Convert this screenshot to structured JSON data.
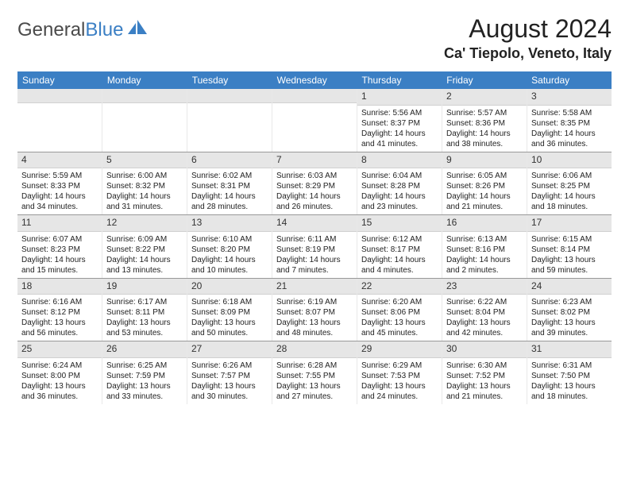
{
  "logo": {
    "text1": "General",
    "text2": "Blue"
  },
  "title": "August 2024",
  "location": "Ca' Tiepolo, Veneto, Italy",
  "colors": {
    "header_bg": "#3b7fc4",
    "daynum_bg": "#e6e6e6",
    "border": "#999999",
    "cell_border": "#e8e8e8"
  },
  "weekdays": [
    "Sunday",
    "Monday",
    "Tuesday",
    "Wednesday",
    "Thursday",
    "Friday",
    "Saturday"
  ],
  "weeks": [
    [
      null,
      null,
      null,
      null,
      {
        "n": "1",
        "sr": "Sunrise: 5:56 AM",
        "ss": "Sunset: 8:37 PM",
        "dl1": "Daylight: 14 hours",
        "dl2": "and 41 minutes."
      },
      {
        "n": "2",
        "sr": "Sunrise: 5:57 AM",
        "ss": "Sunset: 8:36 PM",
        "dl1": "Daylight: 14 hours",
        "dl2": "and 38 minutes."
      },
      {
        "n": "3",
        "sr": "Sunrise: 5:58 AM",
        "ss": "Sunset: 8:35 PM",
        "dl1": "Daylight: 14 hours",
        "dl2": "and 36 minutes."
      }
    ],
    [
      {
        "n": "4",
        "sr": "Sunrise: 5:59 AM",
        "ss": "Sunset: 8:33 PM",
        "dl1": "Daylight: 14 hours",
        "dl2": "and 34 minutes."
      },
      {
        "n": "5",
        "sr": "Sunrise: 6:00 AM",
        "ss": "Sunset: 8:32 PM",
        "dl1": "Daylight: 14 hours",
        "dl2": "and 31 minutes."
      },
      {
        "n": "6",
        "sr": "Sunrise: 6:02 AM",
        "ss": "Sunset: 8:31 PM",
        "dl1": "Daylight: 14 hours",
        "dl2": "and 28 minutes."
      },
      {
        "n": "7",
        "sr": "Sunrise: 6:03 AM",
        "ss": "Sunset: 8:29 PM",
        "dl1": "Daylight: 14 hours",
        "dl2": "and 26 minutes."
      },
      {
        "n": "8",
        "sr": "Sunrise: 6:04 AM",
        "ss": "Sunset: 8:28 PM",
        "dl1": "Daylight: 14 hours",
        "dl2": "and 23 minutes."
      },
      {
        "n": "9",
        "sr": "Sunrise: 6:05 AM",
        "ss": "Sunset: 8:26 PM",
        "dl1": "Daylight: 14 hours",
        "dl2": "and 21 minutes."
      },
      {
        "n": "10",
        "sr": "Sunrise: 6:06 AM",
        "ss": "Sunset: 8:25 PM",
        "dl1": "Daylight: 14 hours",
        "dl2": "and 18 minutes."
      }
    ],
    [
      {
        "n": "11",
        "sr": "Sunrise: 6:07 AM",
        "ss": "Sunset: 8:23 PM",
        "dl1": "Daylight: 14 hours",
        "dl2": "and 15 minutes."
      },
      {
        "n": "12",
        "sr": "Sunrise: 6:09 AM",
        "ss": "Sunset: 8:22 PM",
        "dl1": "Daylight: 14 hours",
        "dl2": "and 13 minutes."
      },
      {
        "n": "13",
        "sr": "Sunrise: 6:10 AM",
        "ss": "Sunset: 8:20 PM",
        "dl1": "Daylight: 14 hours",
        "dl2": "and 10 minutes."
      },
      {
        "n": "14",
        "sr": "Sunrise: 6:11 AM",
        "ss": "Sunset: 8:19 PM",
        "dl1": "Daylight: 14 hours",
        "dl2": "and 7 minutes."
      },
      {
        "n": "15",
        "sr": "Sunrise: 6:12 AM",
        "ss": "Sunset: 8:17 PM",
        "dl1": "Daylight: 14 hours",
        "dl2": "and 4 minutes."
      },
      {
        "n": "16",
        "sr": "Sunrise: 6:13 AM",
        "ss": "Sunset: 8:16 PM",
        "dl1": "Daylight: 14 hours",
        "dl2": "and 2 minutes."
      },
      {
        "n": "17",
        "sr": "Sunrise: 6:15 AM",
        "ss": "Sunset: 8:14 PM",
        "dl1": "Daylight: 13 hours",
        "dl2": "and 59 minutes."
      }
    ],
    [
      {
        "n": "18",
        "sr": "Sunrise: 6:16 AM",
        "ss": "Sunset: 8:12 PM",
        "dl1": "Daylight: 13 hours",
        "dl2": "and 56 minutes."
      },
      {
        "n": "19",
        "sr": "Sunrise: 6:17 AM",
        "ss": "Sunset: 8:11 PM",
        "dl1": "Daylight: 13 hours",
        "dl2": "and 53 minutes."
      },
      {
        "n": "20",
        "sr": "Sunrise: 6:18 AM",
        "ss": "Sunset: 8:09 PM",
        "dl1": "Daylight: 13 hours",
        "dl2": "and 50 minutes."
      },
      {
        "n": "21",
        "sr": "Sunrise: 6:19 AM",
        "ss": "Sunset: 8:07 PM",
        "dl1": "Daylight: 13 hours",
        "dl2": "and 48 minutes."
      },
      {
        "n": "22",
        "sr": "Sunrise: 6:20 AM",
        "ss": "Sunset: 8:06 PM",
        "dl1": "Daylight: 13 hours",
        "dl2": "and 45 minutes."
      },
      {
        "n": "23",
        "sr": "Sunrise: 6:22 AM",
        "ss": "Sunset: 8:04 PM",
        "dl1": "Daylight: 13 hours",
        "dl2": "and 42 minutes."
      },
      {
        "n": "24",
        "sr": "Sunrise: 6:23 AM",
        "ss": "Sunset: 8:02 PM",
        "dl1": "Daylight: 13 hours",
        "dl2": "and 39 minutes."
      }
    ],
    [
      {
        "n": "25",
        "sr": "Sunrise: 6:24 AM",
        "ss": "Sunset: 8:00 PM",
        "dl1": "Daylight: 13 hours",
        "dl2": "and 36 minutes."
      },
      {
        "n": "26",
        "sr": "Sunrise: 6:25 AM",
        "ss": "Sunset: 7:59 PM",
        "dl1": "Daylight: 13 hours",
        "dl2": "and 33 minutes."
      },
      {
        "n": "27",
        "sr": "Sunrise: 6:26 AM",
        "ss": "Sunset: 7:57 PM",
        "dl1": "Daylight: 13 hours",
        "dl2": "and 30 minutes."
      },
      {
        "n": "28",
        "sr": "Sunrise: 6:28 AM",
        "ss": "Sunset: 7:55 PM",
        "dl1": "Daylight: 13 hours",
        "dl2": "and 27 minutes."
      },
      {
        "n": "29",
        "sr": "Sunrise: 6:29 AM",
        "ss": "Sunset: 7:53 PM",
        "dl1": "Daylight: 13 hours",
        "dl2": "and 24 minutes."
      },
      {
        "n": "30",
        "sr": "Sunrise: 6:30 AM",
        "ss": "Sunset: 7:52 PM",
        "dl1": "Daylight: 13 hours",
        "dl2": "and 21 minutes."
      },
      {
        "n": "31",
        "sr": "Sunrise: 6:31 AM",
        "ss": "Sunset: 7:50 PM",
        "dl1": "Daylight: 13 hours",
        "dl2": "and 18 minutes."
      }
    ]
  ]
}
